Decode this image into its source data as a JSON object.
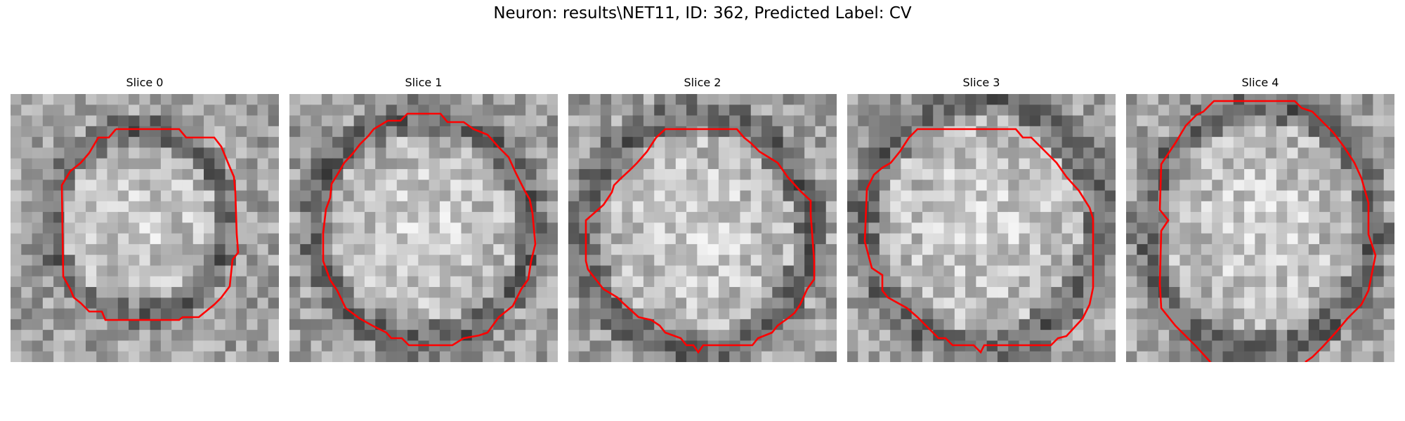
{
  "figure": {
    "title": "Neuron: results\\NET11, ID: 362, Predicted Label: CV"
  },
  "panels": [
    {
      "title": "Slice 0"
    },
    {
      "title": "Slice 1"
    },
    {
      "title": "Slice 2"
    },
    {
      "title": "Slice 3"
    },
    {
      "title": "Slice 4"
    }
  ],
  "colors": {
    "contour": "#ff0000"
  }
}
